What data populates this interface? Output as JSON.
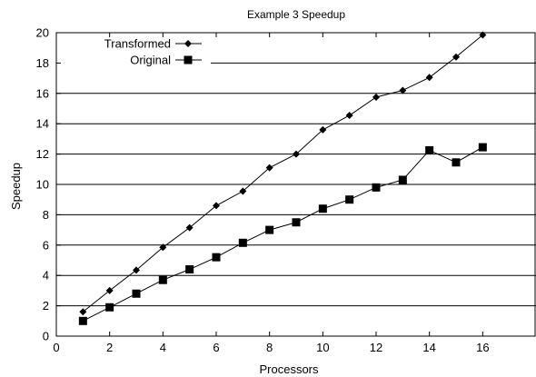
{
  "chart_data": {
    "type": "line",
    "title": "Example 3 Speedup",
    "xlabel": "Processors",
    "ylabel": "Speedup",
    "xlim": [
      0,
      18
    ],
    "ylim": [
      0,
      20
    ],
    "xticks": [
      0,
      2,
      4,
      6,
      8,
      10,
      12,
      14,
      16
    ],
    "yticks": [
      0,
      2,
      4,
      6,
      8,
      10,
      12,
      14,
      16,
      18,
      20
    ],
    "grid": "horizontal",
    "legend_position": "top-left",
    "x": [
      1,
      2,
      3,
      4,
      5,
      6,
      7,
      8,
      9,
      10,
      11,
      12,
      13,
      14,
      15,
      16
    ],
    "series": [
      {
        "name": "Transformed",
        "marker": "diamond",
        "color": "#000000",
        "values": [
          1.6,
          3.0,
          4.35,
          5.85,
          7.15,
          8.6,
          9.55,
          11.1,
          12.0,
          13.6,
          14.55,
          15.75,
          16.2,
          17.05,
          18.4,
          19.85
        ]
      },
      {
        "name": "Original",
        "marker": "square",
        "color": "#000000",
        "values": [
          1.0,
          1.9,
          2.8,
          3.7,
          4.4,
          5.2,
          6.15,
          7.0,
          7.5,
          8.4,
          9.0,
          9.8,
          10.3,
          12.25,
          11.45,
          12.45
        ]
      }
    ]
  }
}
